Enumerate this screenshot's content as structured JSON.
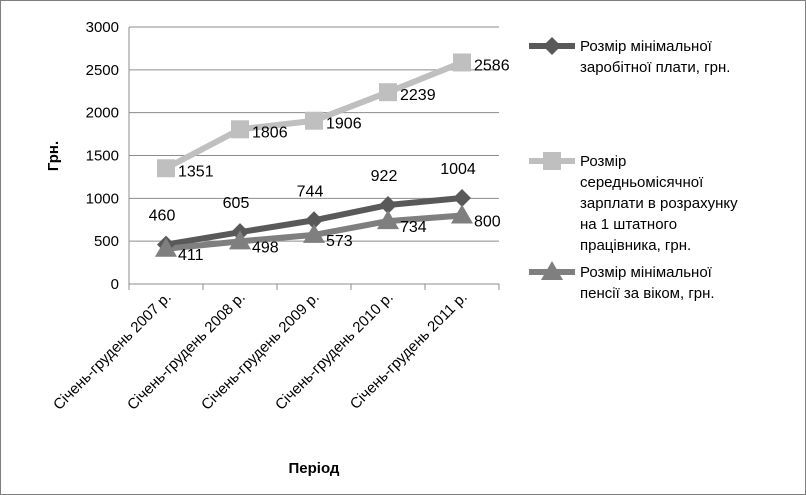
{
  "chart_data": {
    "type": "line",
    "categories": [
      "Січень-грудень 2007 р.",
      "Січень-грудень 2008 р.",
      "Січень-грудень 2009 р.",
      "Січень-грудень 2010 р.",
      "Січень-грудень 2011 р."
    ],
    "series": [
      {
        "name": "Розмір мінімальної заробітної плати, грн.",
        "name_lines": [
          "Розмір мінімальної",
          "заробітної плати, грн."
        ],
        "values": [
          460,
          605,
          744,
          922,
          1004
        ],
        "marker": "diamond",
        "color": "#595959"
      },
      {
        "name": "Розмір середньомісячної зарплати в розрахунку на 1 штатного працівника, грн.",
        "name_lines": [
          "Розмір",
          "середньомісячної",
          "зарплати в розрахунку",
          "на 1 штатного",
          "працівника, грн."
        ],
        "values": [
          1351,
          1806,
          1906,
          2239,
          2586
        ],
        "marker": "square",
        "color": "#bfbfbf"
      },
      {
        "name": "Розмір мінімальної пенсії за віком, грн.",
        "name_lines": [
          "Розмір мінімальної",
          "пенсії за віком, грн."
        ],
        "values": [
          411,
          498,
          573,
          734,
          800
        ],
        "marker": "triangle",
        "color": "#7f7f7f"
      }
    ],
    "xlabel": "Період",
    "ylabel": "Грн.",
    "ylim": [
      0,
      3000
    ],
    "yticks": [
      0,
      500,
      1000,
      1500,
      2000,
      2500,
      3000
    ],
    "grid": true,
    "legend": "right"
  }
}
